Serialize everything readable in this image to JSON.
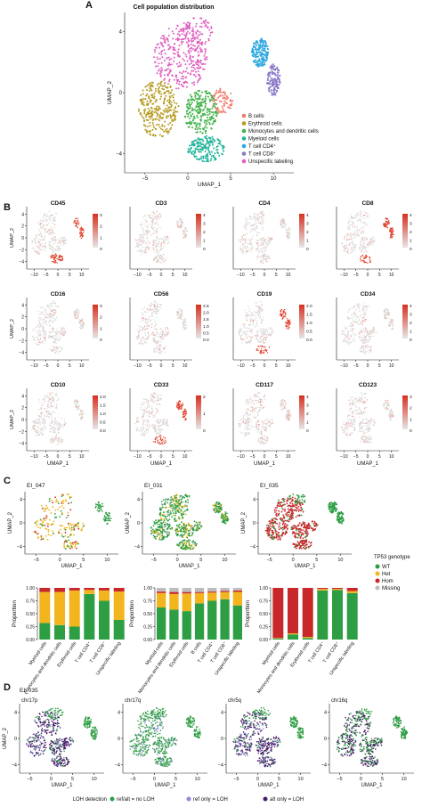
{
  "panels": {
    "a": "A",
    "b": "B",
    "c": "C",
    "d": "D"
  },
  "panel_a": {
    "title": "Cell population distribution",
    "xlabel": "UMAP_1",
    "ylabel": "UMAP_2",
    "xticks": [
      "−5",
      "0",
      "5",
      "10"
    ],
    "yticks": [
      "4",
      "0",
      "−4"
    ],
    "legend": [
      {
        "label": "B cells",
        "color": "#f07b6a"
      },
      {
        "label": "Erythroid cells",
        "color": "#b49a1e"
      },
      {
        "label": "Monocytes and dendritic cells",
        "color": "#42b34a"
      },
      {
        "label": "Myeloid cells",
        "color": "#21b39a"
      },
      {
        "label": "T cell CD4⁺",
        "color": "#2aa7e0"
      },
      {
        "label": "T cell CD8⁺",
        "color": "#8a78c8"
      },
      {
        "label": "Unspecific labeling",
        "color": "#e05fc0"
      }
    ]
  },
  "panel_b": {
    "xlabel": "UMAP_1",
    "ylabel": "UMAP_2",
    "xticks": [
      "−10",
      "−5",
      "0",
      "5",
      "10"
    ],
    "yticks": [
      "4",
      "2",
      "0",
      "−2",
      "−4"
    ],
    "markers": [
      {
        "name": "CD45",
        "scale": [
          "3",
          "2",
          "1",
          "0"
        ]
      },
      {
        "name": "CD3",
        "scale": [
          "4",
          "3",
          "2",
          "1",
          "0"
        ]
      },
      {
        "name": "CD4",
        "scale": [
          "4",
          "3",
          "2",
          "1",
          "0"
        ]
      },
      {
        "name": "CD8",
        "scale": [
          "4",
          "3",
          "2",
          "1",
          "0"
        ]
      },
      {
        "name": "CD16",
        "scale": [
          "3",
          "2",
          "1",
          "0"
        ]
      },
      {
        "name": "CD56",
        "scale": [
          "2.5",
          "2.0",
          "1.5",
          "1.0",
          "0.5",
          "0.0"
        ]
      },
      {
        "name": "CD19",
        "scale": [
          "2.0",
          "1.5",
          "1.0",
          "0.5",
          "0.0"
        ]
      },
      {
        "name": "CD34",
        "scale": [
          "4",
          "3",
          "2",
          "1",
          "0"
        ]
      },
      {
        "name": "CD10",
        "scale": [
          "2.0",
          "1.5",
          "1.0",
          "0.5",
          "0.0"
        ]
      },
      {
        "name": "CD33",
        "scale": [
          "2",
          "1",
          "0"
        ]
      },
      {
        "name": "CD117",
        "scale": [
          "4",
          "3",
          "2",
          "1",
          "0"
        ]
      },
      {
        "name": "CD123",
        "scale": [
          "3",
          "2",
          "1",
          "0"
        ]
      }
    ]
  },
  "panel_c": {
    "samples": [
      "EI_047",
      "EI_031",
      "EI_035"
    ],
    "xlabel": "UMAP_1",
    "ylabel": "UMAP_2",
    "xticks": [
      "−5",
      "0",
      "5",
      "10"
    ],
    "yticks": [
      "4",
      "0",
      "−4"
    ],
    "legend_title": "TP53 genotype",
    "legend": [
      {
        "label": "WT",
        "color": "#2e9e44"
      },
      {
        "label": "Het",
        "color": "#f2b51d"
      },
      {
        "label": "Hom",
        "color": "#c9282b"
      },
      {
        "label": "Missing",
        "color": "#bdbdbd"
      }
    ],
    "bar_ylabel": "Proportion",
    "bar_yticks": [
      "1.00",
      "0.75",
      "0.50",
      "0.25",
      "0.00"
    ]
  },
  "chart_data": [
    {
      "type": "bar",
      "stacked": true,
      "sample": "EI_047",
      "categories": [
        "Myeloid cells",
        "Monocytes and dendritic cells",
        "Erythroid cells",
        "T cell CD4⁺",
        "T cell CD8⁺",
        "Unspecific labeling"
      ],
      "series": [
        {
          "name": "WT",
          "values": [
            0.32,
            0.28,
            0.25,
            0.88,
            0.75,
            0.38
          ]
        },
        {
          "name": "Het",
          "values": [
            0.6,
            0.64,
            0.7,
            0.08,
            0.2,
            0.55
          ]
        },
        {
          "name": "Hom",
          "values": [
            0.08,
            0.08,
            0.05,
            0.04,
            0.05,
            0.07
          ]
        },
        {
          "name": "Missing",
          "values": [
            0,
            0,
            0,
            0,
            0,
            0
          ]
        }
      ],
      "ylabel": "Proportion",
      "ylim": [
        0,
        1
      ]
    },
    {
      "type": "bar",
      "stacked": true,
      "sample": "EI_031",
      "categories": [
        "Myeloid cells",
        "Monocytes and dendritic cells",
        "Erythroid cells",
        "B cells",
        "T cell CD4⁺",
        "T cell CD8⁺",
        "Unspecific labeling"
      ],
      "series": [
        {
          "name": "WT",
          "values": [
            0.62,
            0.58,
            0.55,
            0.7,
            0.75,
            0.78,
            0.66
          ]
        },
        {
          "name": "Het",
          "values": [
            0.28,
            0.3,
            0.34,
            0.2,
            0.16,
            0.14,
            0.26
          ]
        },
        {
          "name": "Hom",
          "values": [
            0.03,
            0.04,
            0.03,
            0.02,
            0.02,
            0.02,
            0.03
          ]
        },
        {
          "name": "Missing",
          "values": [
            0.07,
            0.08,
            0.08,
            0.08,
            0.07,
            0.06,
            0.05
          ]
        }
      ],
      "ylabel": "Proportion",
      "ylim": [
        0,
        1
      ]
    },
    {
      "type": "bar",
      "stacked": true,
      "sample": "EI_035",
      "categories": [
        "Myeloid cells",
        "Monocytes and dendritic cells",
        "Erythroid cells",
        "T cell CD4⁺",
        "T cell CD8⁺",
        "Unspecific labeling"
      ],
      "series": [
        {
          "name": "WT",
          "values": [
            0.02,
            0.1,
            0.03,
            0.95,
            0.96,
            0.9
          ]
        },
        {
          "name": "Het",
          "values": [
            0.01,
            0.02,
            0.02,
            0.03,
            0.02,
            0.04
          ]
        },
        {
          "name": "Hom",
          "values": [
            0.97,
            0.88,
            0.95,
            0.02,
            0.02,
            0.06
          ]
        },
        {
          "name": "Missing",
          "values": [
            0,
            0,
            0,
            0,
            0,
            0
          ]
        }
      ],
      "ylabel": "Proportion",
      "ylim": [
        0,
        1
      ]
    }
  ],
  "panel_d": {
    "sample": "EI_035",
    "chroms": [
      "chr17p",
      "chr17q",
      "chr5q",
      "chr16q"
    ],
    "xlabel": "UMAP_1",
    "ylabel": "UMAP_2",
    "xticks": [
      "−5",
      "0",
      "5",
      "10"
    ],
    "yticks": [
      "4",
      "0",
      "−4"
    ],
    "legend_title": "LOH detection",
    "legend": [
      {
        "label": "ref/alt = no LOH",
        "color": "#2e9e44"
      },
      {
        "label": "ref only = LOH",
        "color": "#8b8bd6"
      },
      {
        "label": "alt only = LOH",
        "color": "#4a1a6b"
      }
    ]
  }
}
